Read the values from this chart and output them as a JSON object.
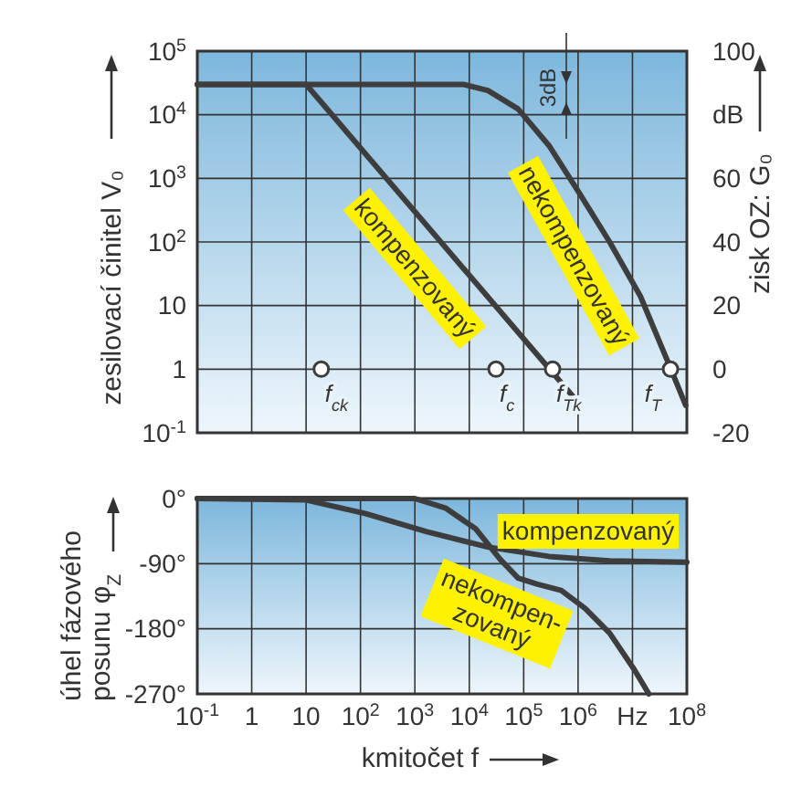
{
  "chart_data": [
    {
      "type": "line",
      "ylabel": "zesilovací činitel V₀",
      "y2label": "zisk OZ: G₀",
      "log": "xy",
      "grid": true,
      "tick_labels": "y",
      "xlim": [
        0.1,
        100000000
      ],
      "xticks": [
        {
          "value": 0.1,
          "label": null
        },
        {
          "value": 1,
          "label": null
        },
        {
          "value": 10,
          "label": null
        },
        {
          "value": 100,
          "label": null
        },
        {
          "value": 1000,
          "label": null
        },
        {
          "value": 10000,
          "label": null
        },
        {
          "value": 100000,
          "label": null
        },
        {
          "value": 1000000,
          "label": null
        },
        {
          "value": 10000000,
          "label": null
        },
        {
          "value": 100000000,
          "label": null
        }
      ],
      "ylim": [
        0.1,
        100000
      ],
      "yticks": [
        {
          "value": 0.1,
          "label": "10$^{-1}$"
        },
        1,
        10,
        {
          "value": 100,
          "label": "10$^{2}$"
        },
        {
          "value": 1000,
          "label": "10$^{3}$"
        },
        {
          "value": 10000,
          "label": "10$^{4}$"
        },
        {
          "value": 100000,
          "label": "10$^{5}$"
        }
      ],
      "y2lim": [
        -20,
        100
      ],
      "y2ticks": [
        -20,
        0,
        20,
        40,
        60,
        {
          "value": 80,
          "label": "dB"
        },
        100
      ],
      "series": [
        {
          "name": "kompenzovaný",
          "color": "#3d3d3d",
          "x": [
            0.1,
            10,
            1000000
          ],
          "values": [
            30000,
            30000,
            0.3
          ]
        },
        {
          "name": "nekompenzovaný",
          "color": "#3d3d3d",
          "x": [
            0.1,
            1000,
            7800,
            22000,
            79000,
            290000,
            1070000,
            3800000,
            14000000,
            51000000,
            95000000
          ],
          "values": [
            30000,
            30000,
            30000,
            24000,
            12300,
            3300,
            575,
            100,
            14,
            1,
            0.27
          ]
        },
        {
          "type": "scatter",
          "marker": "circle",
          "color": "#3d3d3d",
          "x": [
            19,
            31000,
            340000,
            50000000
          ],
          "values": [
            1,
            1,
            1,
            1
          ]
        }
      ],
      "annotations": [
        {
          "text": "f$_{ck}$",
          "x": 19,
          "y": 1
        },
        {
          "text": "f$_{c}$",
          "x": 31000,
          "y": 1
        },
        {
          "text": "f$_{Tk}$",
          "x": 340000,
          "y": 1
        },
        {
          "text": "f$_{T}$",
          "x": 50000000,
          "y": 1
        },
        "3dB"
      ]
    },
    {
      "type": "line",
      "ylabel": "úhel fázového posunu φ$_{Z}$",
      "xlabel": "kmitočet f",
      "log": "x",
      "grid": true,
      "xlim": [
        0.1,
        100000000
      ],
      "xticks": [
        {
          "value": 0.1,
          "label": "10$^{-1}$"
        },
        1,
        10,
        {
          "value": 100,
          "label": "10$^{2}$"
        },
        {
          "value": 1000,
          "label": "10$^{3}$"
        },
        {
          "value": 10000,
          "label": "10$^{4}$"
        },
        {
          "value": 100000,
          "label": "10$^{5}$"
        },
        {
          "value": 1000000,
          "label": "10$^{6}$"
        },
        {
          "value": 10000000,
          "label": "Hz"
        },
        {
          "value": 100000000,
          "label": "10$^{8}$"
        }
      ],
      "ylim": [
        -270,
        0
      ],
      "yticks": [
        {
          "value": -270,
          "label": "-270°"
        },
        {
          "value": -180,
          "label": "-180°"
        },
        {
          "value": -90,
          "label": "-90°"
        },
        {
          "value": 0,
          "label": "0°"
        }
      ],
      "series": [
        {
          "name": "kompenzovaný",
          "color": "#3d3d3d",
          "x": [
            0.1,
            10,
            126,
            1660,
            21900,
            290000,
            3800000,
            100000000
          ],
          "values": [
            0,
            -2,
            -21,
            -46,
            -67,
            -80,
            -86,
            -88
          ]
        },
        {
          "name": "nekompen-zovaný",
          "color": "#3d3d3d",
          "x": [
            0.1,
            1000,
            3630,
            13200,
            37000,
            79000,
            174000,
            490000,
            1350000,
            3800000,
            10700000,
            20000000
          ],
          "values": [
            0,
            0,
            -13,
            -42,
            -84,
            -110,
            -118,
            -127,
            -152,
            -186,
            -236,
            -270
          ]
        }
      ]
    }
  ]
}
